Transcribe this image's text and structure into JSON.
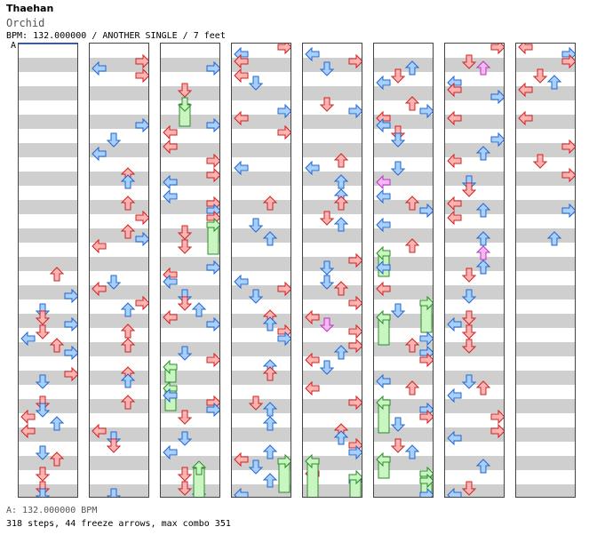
{
  "header": {
    "artist": "Thaehan",
    "title": "Orchid",
    "meta": "BPM: 132.000000 / ANOTHER SINGLE / 7 feet",
    "bpm_marker": "A"
  },
  "footer": {
    "bpm_legend": "A: 132.000000 BPM",
    "stats": "318 steps, 44 freeze arrows, max combo 351"
  },
  "chart": {
    "columns": 8,
    "measures_per_column": 8,
    "lanes": [
      "left",
      "down",
      "up",
      "right"
    ],
    "colors": {
      "quarter_fill": "#ffb3b3",
      "quarter_stroke": "#cc2222",
      "eighth_fill": "#a8d0ff",
      "eighth_stroke": "#2266cc",
      "sixteenth_fill": "#f5b8f5",
      "sixteenth_stroke": "#bb33bb",
      "freeze_fill": "#c8f5c0",
      "freeze_stroke": "#2b8a2b"
    }
  }
}
